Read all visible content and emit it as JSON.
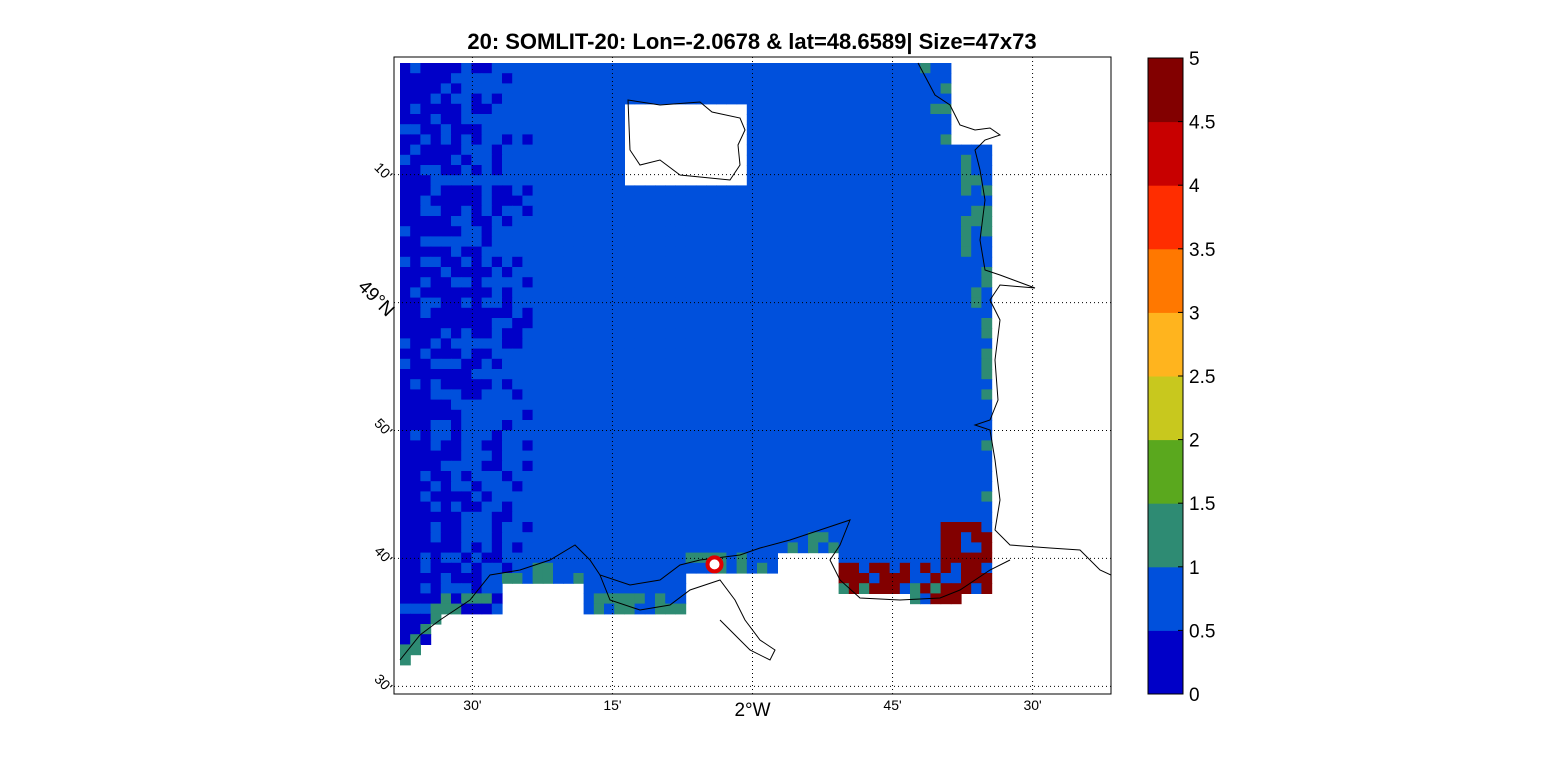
{
  "chart_data": {
    "type": "heatmap",
    "title": "20: SOMLIT-20: Lon=-2.0678 & lat=48.6589| Size=47x73",
    "x_ticks": [
      {
        "lon": -2.5,
        "label": "30'"
      },
      {
        "lon": -2.25,
        "label": "15'"
      },
      {
        "lon": -2.0,
        "label": "2°W"
      },
      {
        "lon": -1.75,
        "label": "45'"
      },
      {
        "lon": -1.5,
        "label": "30'"
      }
    ],
    "y_ticks": [
      {
        "lat": 48.5,
        "label": "30'"
      },
      {
        "lat": 48.6667,
        "label": "40'"
      },
      {
        "lat": 48.8333,
        "label": "50'"
      },
      {
        "lat": 49.0,
        "label": "49°N"
      },
      {
        "lat": 49.1667,
        "label": "10'"
      }
    ],
    "xlim": [
      -2.64,
      -1.36
    ],
    "ylim": [
      48.49,
      49.32
    ],
    "colorbar": {
      "min": 0,
      "max": 5,
      "tick_labels": [
        "0",
        "0.5",
        "1",
        "1.5",
        "2",
        "2.5",
        "3",
        "3.5",
        "4",
        "4.5",
        "5"
      ],
      "colors": [
        "#0000c8",
        "#0050dc",
        "#2e8b73",
        "#5aa81e",
        "#c8c81e",
        "#ffb41e",
        "#ff7800",
        "#ff2d00",
        "#c80000",
        "#820000"
      ]
    },
    "station": {
      "name": "SOMLIT-20",
      "lon": -2.0678,
      "lat": 48.6589
    },
    "grid": true,
    "grid_style": "dotted"
  }
}
